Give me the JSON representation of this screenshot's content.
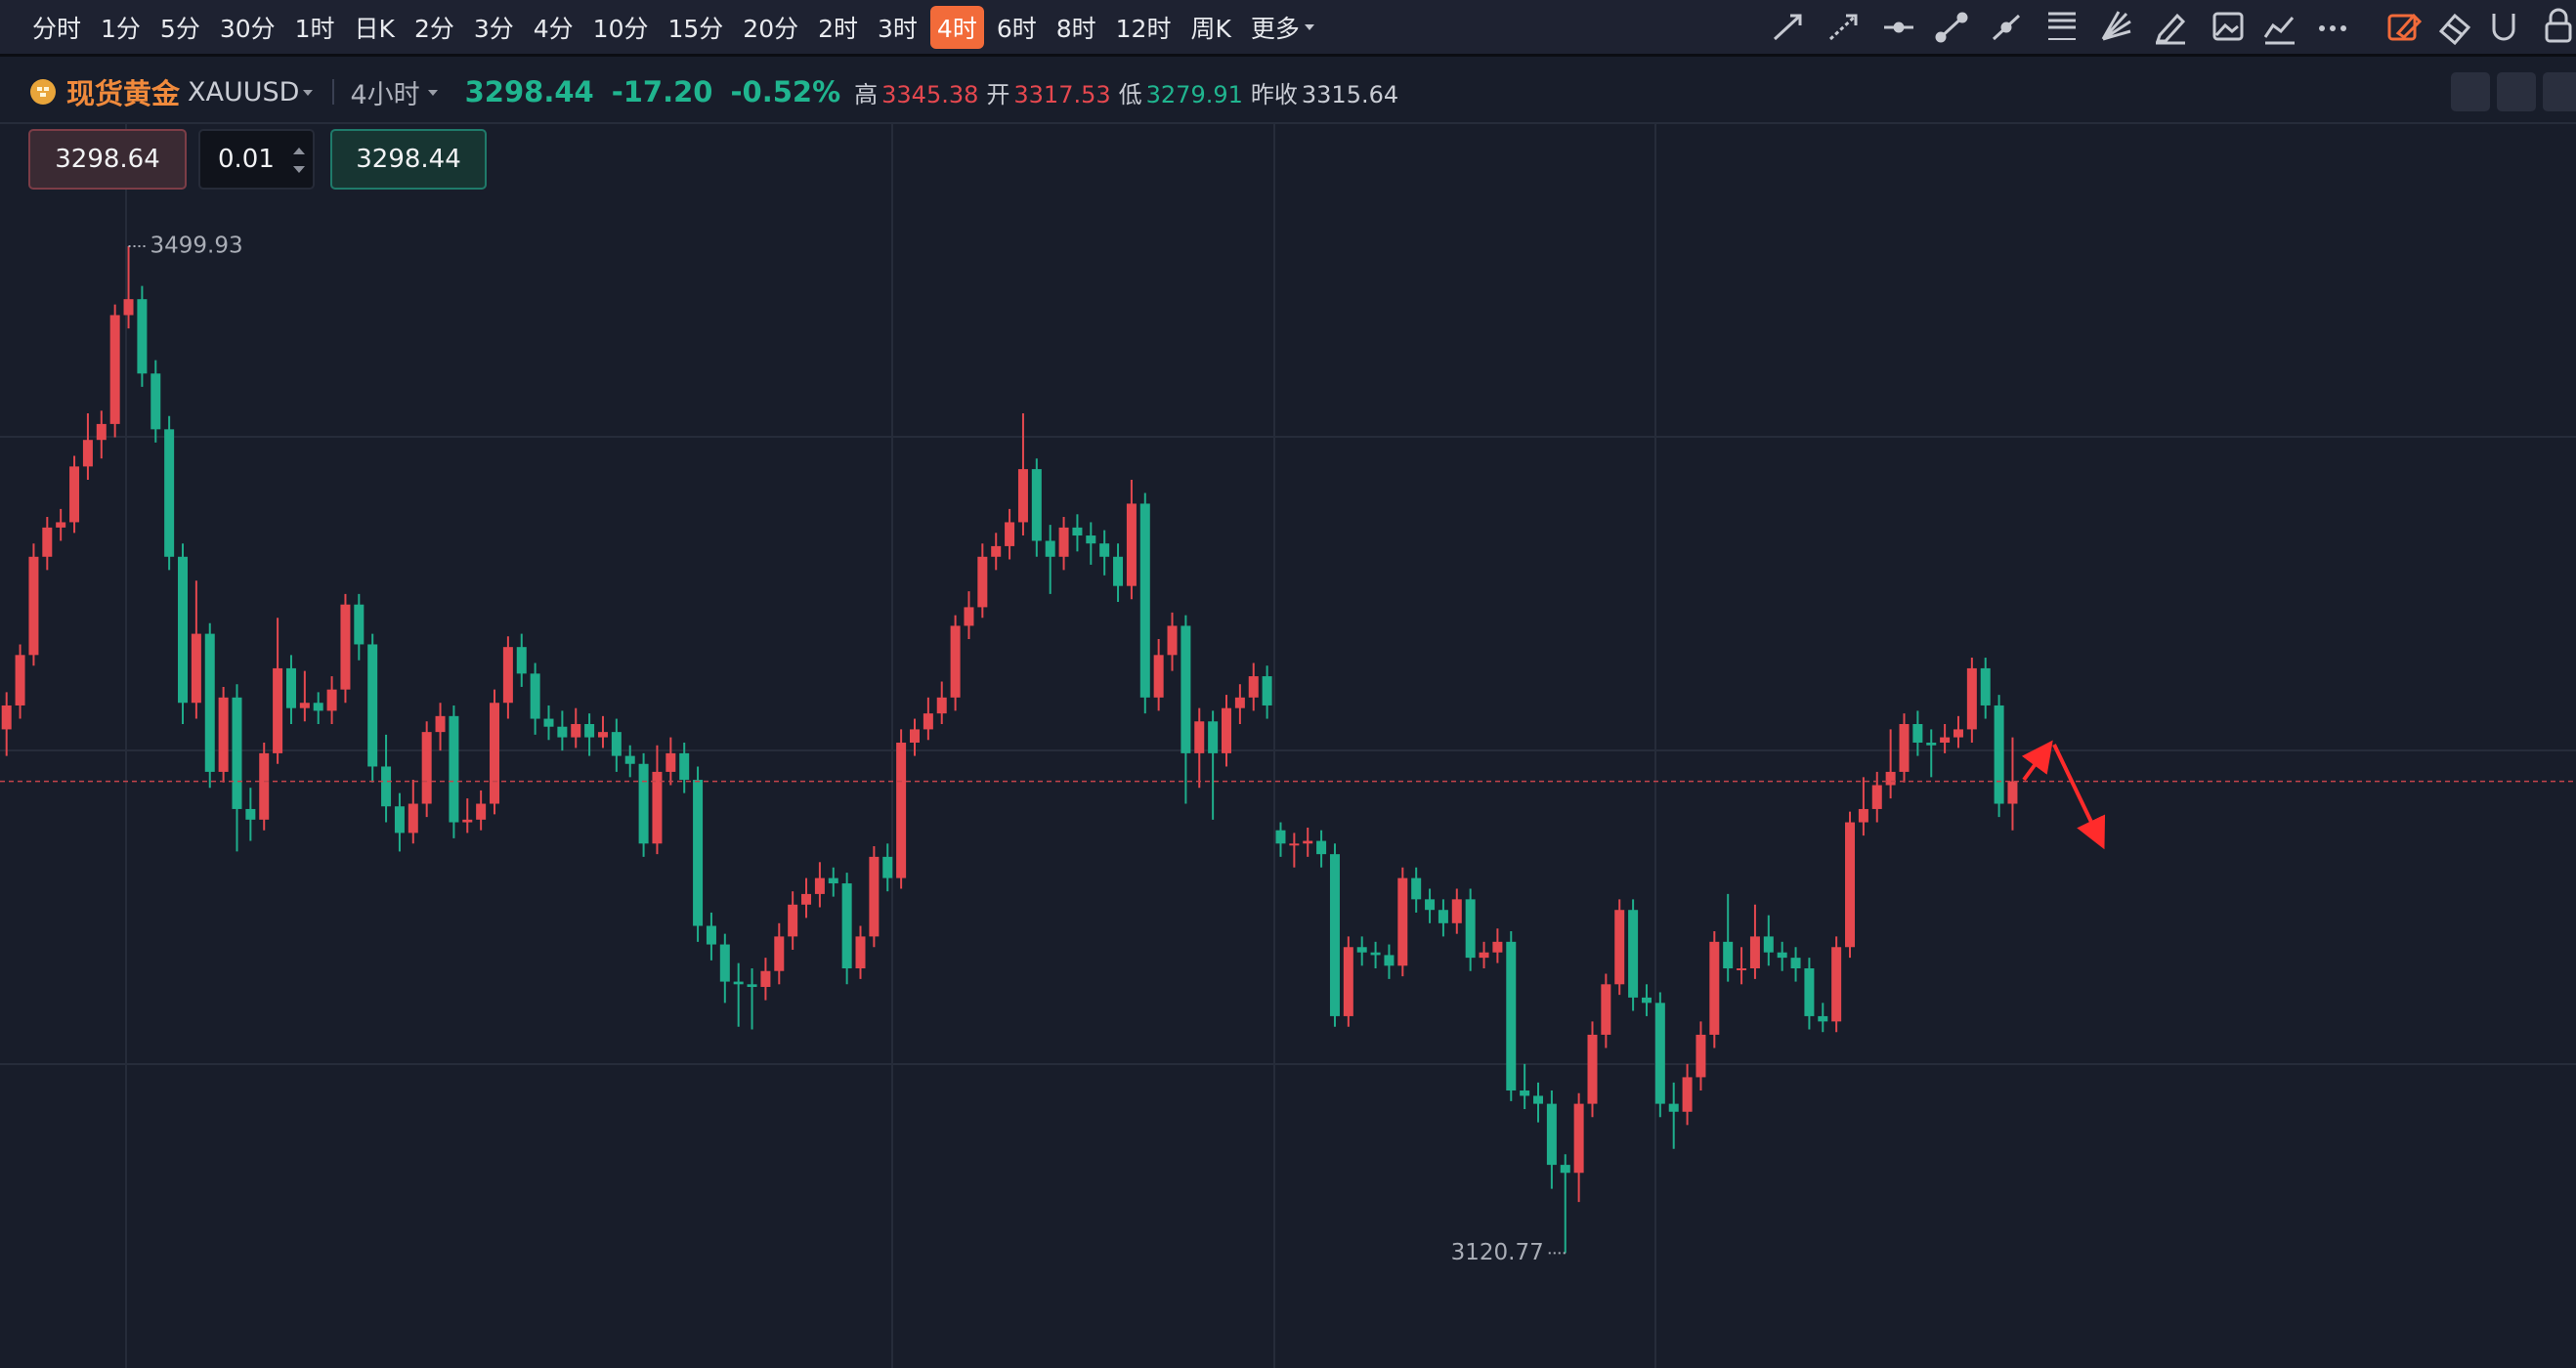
{
  "toolbar": {
    "periods": [
      "分时",
      "1分",
      "5分",
      "30分",
      "1时",
      "日K",
      "2分",
      "3分",
      "4分",
      "10分",
      "15分",
      "20分",
      "2时",
      "3时",
      "4时",
      "6时",
      "8时",
      "12时",
      "周K"
    ],
    "active_period": 14,
    "more": "更多"
  },
  "symbol": {
    "name": "现货黄金",
    "code": "XAUUSD",
    "interval": "4小时",
    "last": "3298.44",
    "change": "-17.20",
    "change_pct": "-0.52%",
    "quote": [
      {
        "label": "高",
        "value": "3345.38",
        "color": "#e5484f"
      },
      {
        "label": "开",
        "value": "3317.53",
        "color": "#e5484f"
      },
      {
        "label": "低",
        "value": "3279.91",
        "color": "#20b58f"
      },
      {
        "label": "昨收",
        "value": "3315.64",
        "color": "#c9ccd4"
      }
    ]
  },
  "order": {
    "sell": "3298.64",
    "lot": "0.01",
    "buy": "3298.44"
  },
  "chart_data": {
    "type": "candlestick",
    "ylim": [
      3077.5,
      3546.3
    ],
    "up_color": "#e5484f",
    "down_color": "#1fae8c",
    "last_line_color": "#c4434b",
    "ohlc": [
      [
        3318,
        3332,
        3308,
        3327
      ],
      [
        3327,
        3350,
        3322,
        3346
      ],
      [
        3346,
        3388,
        3342,
        3383
      ],
      [
        3383,
        3398,
        3378,
        3394
      ],
      [
        3394,
        3401,
        3389,
        3396
      ],
      [
        3396,
        3421,
        3392,
        3417
      ],
      [
        3417,
        3437,
        3412,
        3427
      ],
      [
        3427,
        3438,
        3420,
        3433
      ],
      [
        3433,
        3478,
        3428,
        3474
      ],
      [
        3474,
        3499.93,
        3469,
        3480
      ],
      [
        3480,
        3485,
        3447,
        3452
      ],
      [
        3452,
        3457,
        3426,
        3431
      ],
      [
        3431,
        3436,
        3378,
        3383
      ],
      [
        3383,
        3388,
        3320,
        3328
      ],
      [
        3328,
        3374,
        3322,
        3354
      ],
      [
        3354,
        3358,
        3296,
        3302
      ],
      [
        3302,
        3334,
        3298,
        3330
      ],
      [
        3330,
        3335,
        3272,
        3288
      ],
      [
        3288,
        3296,
        3276,
        3284
      ],
      [
        3284,
        3313,
        3280,
        3309
      ],
      [
        3309,
        3360,
        3305,
        3341
      ],
      [
        3341,
        3346,
        3320,
        3326
      ],
      [
        3326,
        3340,
        3321,
        3328
      ],
      [
        3328,
        3332,
        3320,
        3325
      ],
      [
        3325,
        3338,
        3320,
        3333
      ],
      [
        3333,
        3369,
        3328,
        3365
      ],
      [
        3365,
        3369,
        3344,
        3350
      ],
      [
        3350,
        3354,
        3298,
        3304
      ],
      [
        3304,
        3316,
        3283,
        3289
      ],
      [
        3289,
        3294,
        3272,
        3279
      ],
      [
        3279,
        3299,
        3275,
        3290
      ],
      [
        3290,
        3321,
        3285,
        3317
      ],
      [
        3317,
        3328,
        3310,
        3323
      ],
      [
        3323,
        3327,
        3277,
        3283
      ],
      [
        3283,
        3292,
        3279,
        3284
      ],
      [
        3284,
        3295,
        3280,
        3290
      ],
      [
        3290,
        3333,
        3286,
        3328
      ],
      [
        3328,
        3353,
        3322,
        3349
      ],
      [
        3349,
        3354,
        3334,
        3339
      ],
      [
        3339,
        3343,
        3316,
        3322
      ],
      [
        3322,
        3327,
        3314,
        3319
      ],
      [
        3319,
        3325,
        3310,
        3315
      ],
      [
        3315,
        3326,
        3311,
        3320
      ],
      [
        3320,
        3324,
        3308,
        3315
      ],
      [
        3315,
        3323,
        3311,
        3317
      ],
      [
        3317,
        3322,
        3302,
        3308
      ],
      [
        3308,
        3312,
        3300,
        3305
      ],
      [
        3305,
        3309,
        3270,
        3275
      ],
      [
        3275,
        3312,
        3271,
        3302
      ],
      [
        3302,
        3315,
        3297,
        3309
      ],
      [
        3309,
        3313,
        3294,
        3299
      ],
      [
        3299,
        3304,
        3238,
        3244
      ],
      [
        3244,
        3249,
        3231,
        3237
      ],
      [
        3237,
        3241,
        3215,
        3223
      ],
      [
        3223,
        3230,
        3206,
        3222
      ],
      [
        3222,
        3228,
        3205,
        3221
      ],
      [
        3221,
        3232,
        3216,
        3227
      ],
      [
        3227,
        3245,
        3222,
        3240
      ],
      [
        3240,
        3257,
        3235,
        3252
      ],
      [
        3252,
        3262,
        3247,
        3256
      ],
      [
        3256,
        3268,
        3251,
        3262
      ],
      [
        3262,
        3266,
        3255,
        3260
      ],
      [
        3260,
        3264,
        3222,
        3228
      ],
      [
        3228,
        3244,
        3224,
        3240
      ],
      [
        3240,
        3274,
        3236,
        3270
      ],
      [
        3270,
        3275,
        3257,
        3262
      ],
      [
        3262,
        3318,
        3258,
        3313
      ],
      [
        3313,
        3322,
        3308,
        3318
      ],
      [
        3318,
        3330,
        3314,
        3324
      ],
      [
        3324,
        3336,
        3320,
        3330
      ],
      [
        3330,
        3361,
        3325,
        3357
      ],
      [
        3357,
        3370,
        3352,
        3364
      ],
      [
        3364,
        3388,
        3360,
        3383
      ],
      [
        3383,
        3392,
        3378,
        3387
      ],
      [
        3387,
        3401,
        3382,
        3396
      ],
      [
        3396,
        3437,
        3391,
        3416
      ],
      [
        3416,
        3420,
        3383,
        3389
      ],
      [
        3389,
        3395,
        3369,
        3383
      ],
      [
        3383,
        3398,
        3378,
        3394
      ],
      [
        3394,
        3399,
        3385,
        3391
      ],
      [
        3391,
        3396,
        3380,
        3388
      ],
      [
        3388,
        3393,
        3376,
        3383
      ],
      [
        3383,
        3388,
        3366,
        3372
      ],
      [
        3372,
        3412,
        3367,
        3403
      ],
      [
        3403,
        3407,
        3324,
        3330
      ],
      [
        3330,
        3352,
        3325,
        3346
      ],
      [
        3346,
        3362,
        3340,
        3357
      ],
      [
        3357,
        3361,
        3290,
        3309
      ],
      [
        3309,
        3326,
        3296,
        3321
      ],
      [
        3321,
        3325,
        3284,
        3309
      ],
      [
        3309,
        3331,
        3304,
        3326
      ],
      [
        3326,
        3335,
        3320,
        3330
      ],
      [
        3330,
        3343,
        3325,
        3338
      ],
      [
        3338,
        3342,
        3322,
        3327
      ],
      [
        3280,
        3283,
        3270,
        3275
      ],
      [
        3275,
        3279,
        3266,
        3275
      ],
      [
        3275,
        3281,
        3270,
        3276
      ],
      [
        3276,
        3280,
        3266,
        3271
      ],
      [
        3271,
        3275,
        3206,
        3210
      ],
      [
        3210,
        3240,
        3206,
        3236
      ],
      [
        3236,
        3240,
        3229,
        3234
      ],
      [
        3234,
        3238,
        3228,
        3233
      ],
      [
        3233,
        3237,
        3224,
        3229
      ],
      [
        3229,
        3266,
        3225,
        3262
      ],
      [
        3262,
        3266,
        3249,
        3254
      ],
      [
        3254,
        3258,
        3245,
        3250
      ],
      [
        3250,
        3254,
        3240,
        3245
      ],
      [
        3245,
        3258,
        3241,
        3254
      ],
      [
        3254,
        3258,
        3227,
        3232
      ],
      [
        3232,
        3238,
        3228,
        3234
      ],
      [
        3234,
        3243,
        3230,
        3238
      ],
      [
        3238,
        3242,
        3178,
        3182
      ],
      [
        3182,
        3192,
        3175,
        3180
      ],
      [
        3180,
        3185,
        3170,
        3177
      ],
      [
        3177,
        3182,
        3145,
        3154
      ],
      [
        3154,
        3158,
        3120.77,
        3151
      ],
      [
        3151,
        3181,
        3140,
        3177
      ],
      [
        3177,
        3208,
        3172,
        3203
      ],
      [
        3203,
        3226,
        3198,
        3222
      ],
      [
        3222,
        3254,
        3218,
        3250
      ],
      [
        3250,
        3254,
        3212,
        3217
      ],
      [
        3217,
        3222,
        3210,
        3215
      ],
      [
        3215,
        3219,
        3172,
        3177
      ],
      [
        3177,
        3185,
        3160,
        3174
      ],
      [
        3174,
        3192,
        3169,
        3187
      ],
      [
        3187,
        3208,
        3182,
        3203
      ],
      [
        3203,
        3242,
        3198,
        3238
      ],
      [
        3238,
        3256,
        3223,
        3228
      ],
      [
        3228,
        3236,
        3222,
        3228
      ],
      [
        3228,
        3252,
        3224,
        3240
      ],
      [
        3240,
        3248,
        3229,
        3234
      ],
      [
        3234,
        3238,
        3227,
        3232
      ],
      [
        3232,
        3236,
        3223,
        3228
      ],
      [
        3228,
        3232,
        3205,
        3210
      ],
      [
        3210,
        3215,
        3204,
        3208
      ],
      [
        3208,
        3240,
        3204,
        3236
      ],
      [
        3236,
        3287,
        3232,
        3283
      ],
      [
        3283,
        3300,
        3278,
        3288
      ],
      [
        3288,
        3302,
        3283,
        3297
      ],
      [
        3297,
        3318,
        3292,
        3302
      ],
      [
        3302,
        3324,
        3298,
        3320
      ],
      [
        3320,
        3325,
        3308,
        3313
      ],
      [
        3313,
        3318,
        3300,
        3312
      ],
      [
        3313,
        3320,
        3309,
        3315
      ],
      [
        3315,
        3323,
        3311,
        3318
      ],
      [
        3318,
        3345,
        3313,
        3341
      ],
      [
        3341,
        3345,
        3322,
        3327
      ],
      [
        3327,
        3331,
        3285,
        3290
      ],
      [
        3290,
        3315,
        3280,
        3298.44
      ]
    ]
  }
}
